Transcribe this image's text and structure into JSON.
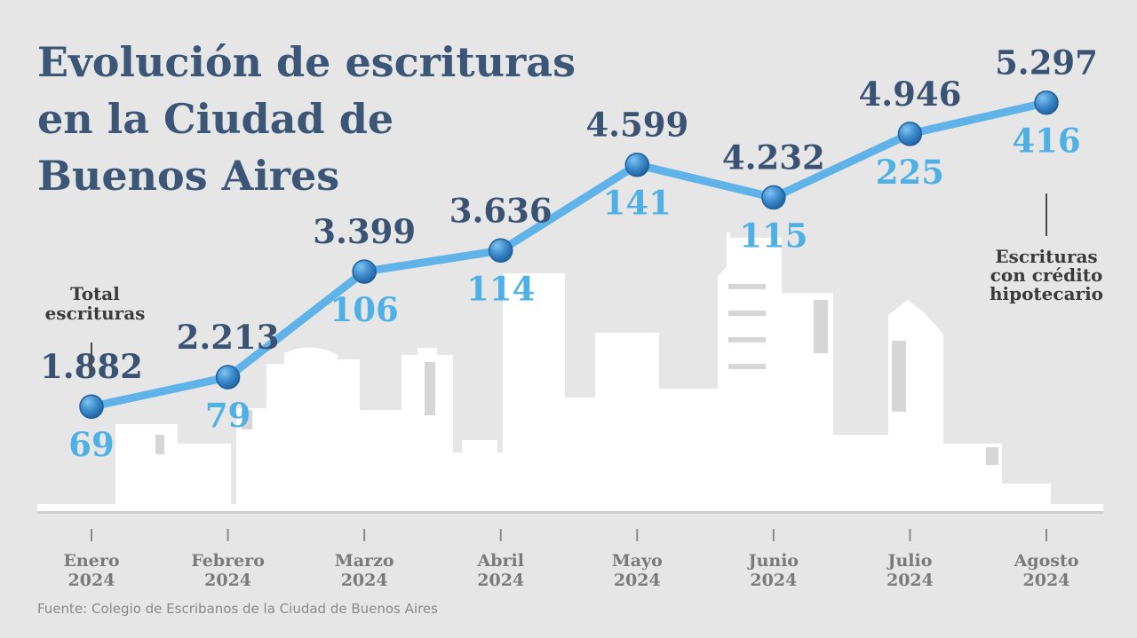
{
  "title_lines": [
    "Evolución de escrituras",
    "en la Ciudad de",
    "Buenos Aires"
  ],
  "source": "Fuente: Colegio de Escribanos de la Ciudad de Buenos Aires",
  "colors": {
    "background": "#e6e6e6",
    "title": "#3c5677",
    "total_value": "#3a5374",
    "mortgage_value": "#4fb0e6",
    "line": "#5fb3e8",
    "marker": "#2f79bb",
    "skyline": "#ffffff"
  },
  "annotations": {
    "total": [
      "Total",
      "escrituras"
    ],
    "mortgage": [
      "Escrituras",
      "con crédito",
      "hipotecario"
    ]
  },
  "chart_data": {
    "type": "line",
    "title": "Evolución de escrituras en la Ciudad de Buenos Aires",
    "categories": [
      [
        "Enero",
        "2024"
      ],
      [
        "Febrero",
        "2024"
      ],
      [
        "Marzo",
        "2024"
      ],
      [
        "Abril",
        "2024"
      ],
      [
        "Mayo",
        "2024"
      ],
      [
        "Junio",
        "2024"
      ],
      [
        "Julio",
        "2024"
      ],
      [
        "Agosto",
        "2024"
      ]
    ],
    "series": [
      {
        "name": "Total escrituras",
        "values": [
          1882,
          2213,
          3399,
          3636,
          4599,
          4232,
          4946,
          5297
        ],
        "labels": [
          "1.882",
          "2.213",
          "3.399",
          "3.636",
          "4.599",
          "4.232",
          "4.946",
          "5.297"
        ]
      },
      {
        "name": "Escrituras con crédito hipotecario",
        "values": [
          69,
          79,
          106,
          114,
          141,
          115,
          225,
          416
        ],
        "labels": [
          "69",
          "79",
          "106",
          "114",
          "141",
          "115",
          "225",
          "416"
        ]
      }
    ],
    "xlabel": "",
    "ylabel": "",
    "ylim": [
      600,
      6100
    ],
    "grid": false,
    "legend": "none"
  }
}
